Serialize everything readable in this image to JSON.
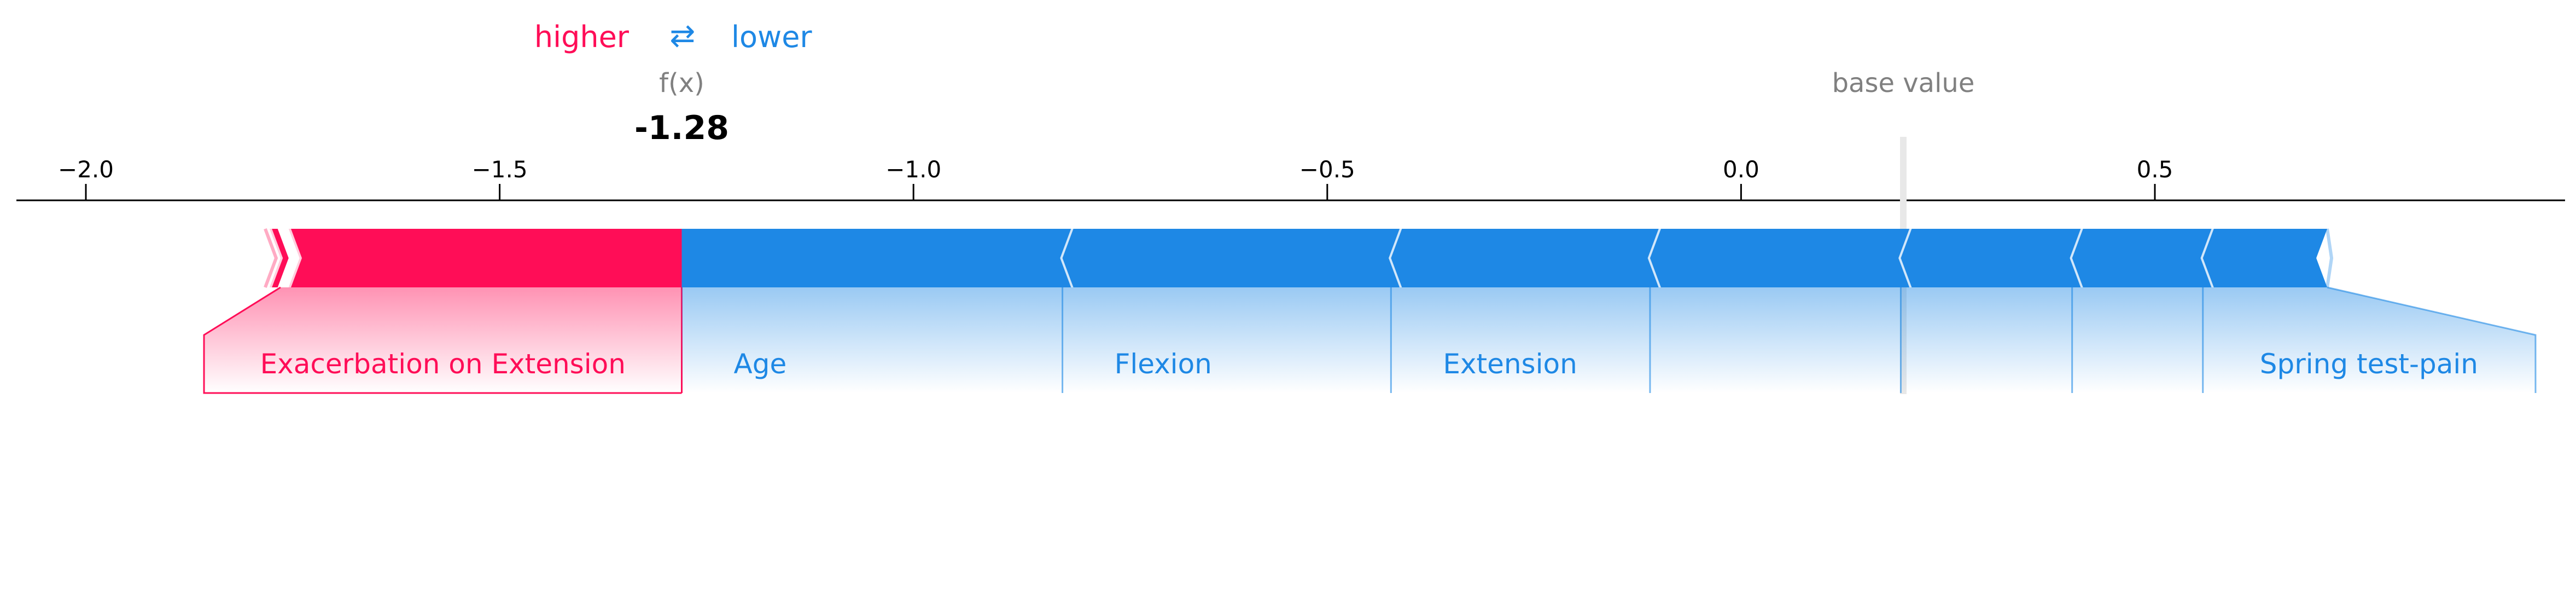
{
  "legend": {
    "higher": "higher",
    "arrows": "⇄",
    "lower": "lower"
  },
  "colors": {
    "positive": "#ff0d57",
    "negative": "#1e88e5",
    "base_line": "#e8e8e8",
    "grey_text": "#808080"
  },
  "chart_data": {
    "type": "force",
    "output_label": "f(x)",
    "output_value": -1.28,
    "output_value_text": "-1.28",
    "base_value_label": "base value",
    "base_value": 0.196,
    "xlim": [
      -2.08,
      1.0
    ],
    "ticks": [
      -2.0,
      -1.5,
      -1.0,
      -0.5,
      0.0,
      0.5
    ],
    "tick_labels": [
      "−2.0",
      "−1.5",
      "−1.0",
      "−0.5",
      "0.0",
      "0.5"
    ],
    "higher_features": [
      {
        "label": "Exacerbation on Extension",
        "from": -1.28,
        "to": -1.755
      },
      {
        "label": "",
        "from": -1.755,
        "to": -1.778
      }
    ],
    "lower_features": [
      {
        "label": "Age",
        "from": -1.28,
        "to": -0.82
      },
      {
        "label": "Flexion",
        "from": -0.82,
        "to": -0.423
      },
      {
        "label": "Extension",
        "from": -0.423,
        "to": -0.11
      },
      {
        "label": "",
        "from": -0.11,
        "to": 0.193
      },
      {
        "label": "",
        "from": 0.193,
        "to": 0.4
      },
      {
        "label": "",
        "from": 0.4,
        "to": 0.558
      },
      {
        "label": "Spring test-pain",
        "from": 0.558,
        "to": 0.695
      }
    ]
  }
}
